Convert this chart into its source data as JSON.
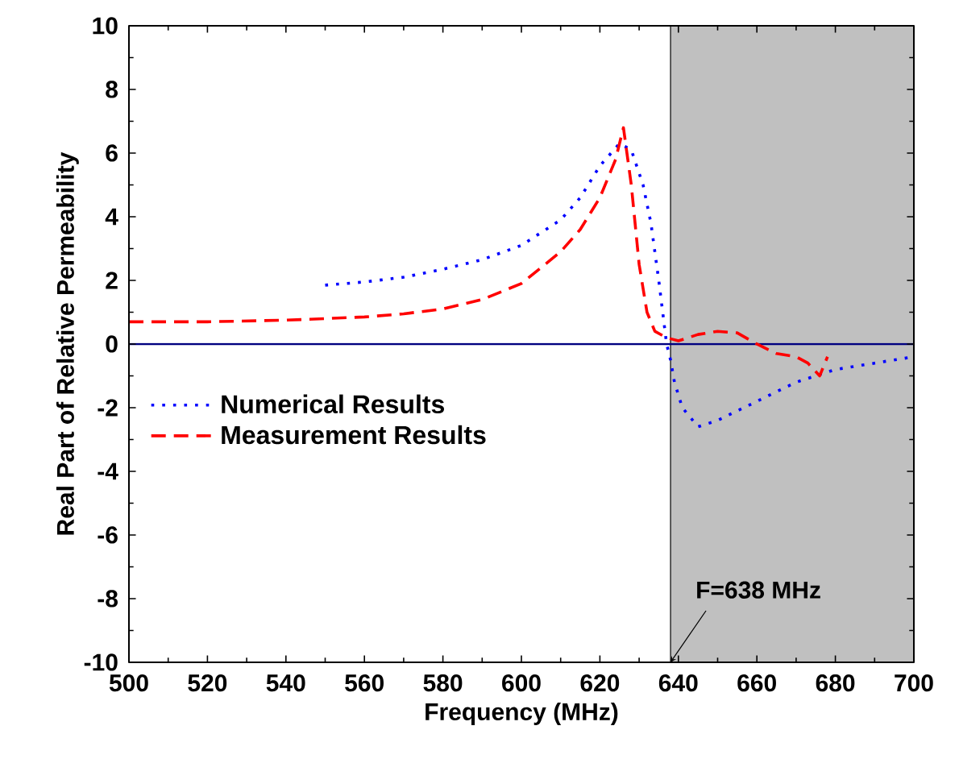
{
  "chart_data": {
    "type": "line",
    "xlabel": "Frequency (MHz)",
    "ylabel": "Real Part of Relative Permeability",
    "xlim": [
      500,
      700
    ],
    "ylim": [
      -10,
      10
    ],
    "xticks": [
      500,
      520,
      540,
      560,
      580,
      600,
      620,
      640,
      660,
      680,
      700
    ],
    "yticks": [
      -10,
      -8,
      -6,
      -4,
      -2,
      0,
      2,
      4,
      6,
      8,
      10
    ],
    "legend": "left",
    "grid": false,
    "series": [
      {
        "name": "Numerical Results",
        "color": "#0000ff",
        "line_style": "dotted",
        "x": [
          550,
          560,
          570,
          580,
          590,
          600,
          610,
          615,
          620,
          625,
          628,
          631,
          633,
          635,
          636,
          637,
          638,
          639,
          641,
          645,
          650,
          660,
          670,
          680,
          690,
          700
        ],
        "values": [
          1.85,
          1.95,
          2.1,
          2.35,
          2.65,
          3.1,
          3.9,
          4.6,
          5.6,
          6.3,
          6.1,
          5.0,
          3.8,
          2.0,
          1.0,
          0,
          -0.5,
          -1.2,
          -2.0,
          -2.6,
          -2.4,
          -1.8,
          -1.2,
          -0.8,
          -0.6,
          -0.4
        ]
      },
      {
        "name": "Measurement Results",
        "color": "#ff0000",
        "line_style": "dashed",
        "x": [
          500,
          520,
          540,
          560,
          570,
          580,
          590,
          600,
          610,
          615,
          620,
          624,
          626,
          628,
          630,
          632,
          634,
          637,
          640,
          645,
          650,
          655,
          660,
          665,
          670,
          673,
          676,
          678
        ],
        "values": [
          0.7,
          0.7,
          0.75,
          0.85,
          0.95,
          1.1,
          1.4,
          1.9,
          2.9,
          3.6,
          4.6,
          5.8,
          6.8,
          5.0,
          2.5,
          1.0,
          0.4,
          0.2,
          0.1,
          0.3,
          0.4,
          0.35,
          0.0,
          -0.3,
          -0.4,
          -0.6,
          -1.0,
          -0.4
        ]
      }
    ],
    "ref_lines": [
      {
        "axis": "y",
        "value": 0,
        "color": "#000080"
      }
    ],
    "bands": [
      {
        "axis": "x",
        "from": 638,
        "to": 700,
        "color": "#c0c0c0"
      }
    ],
    "annotations": [
      {
        "text": "F=638 MHz",
        "x": 638,
        "y": -10
      }
    ]
  }
}
